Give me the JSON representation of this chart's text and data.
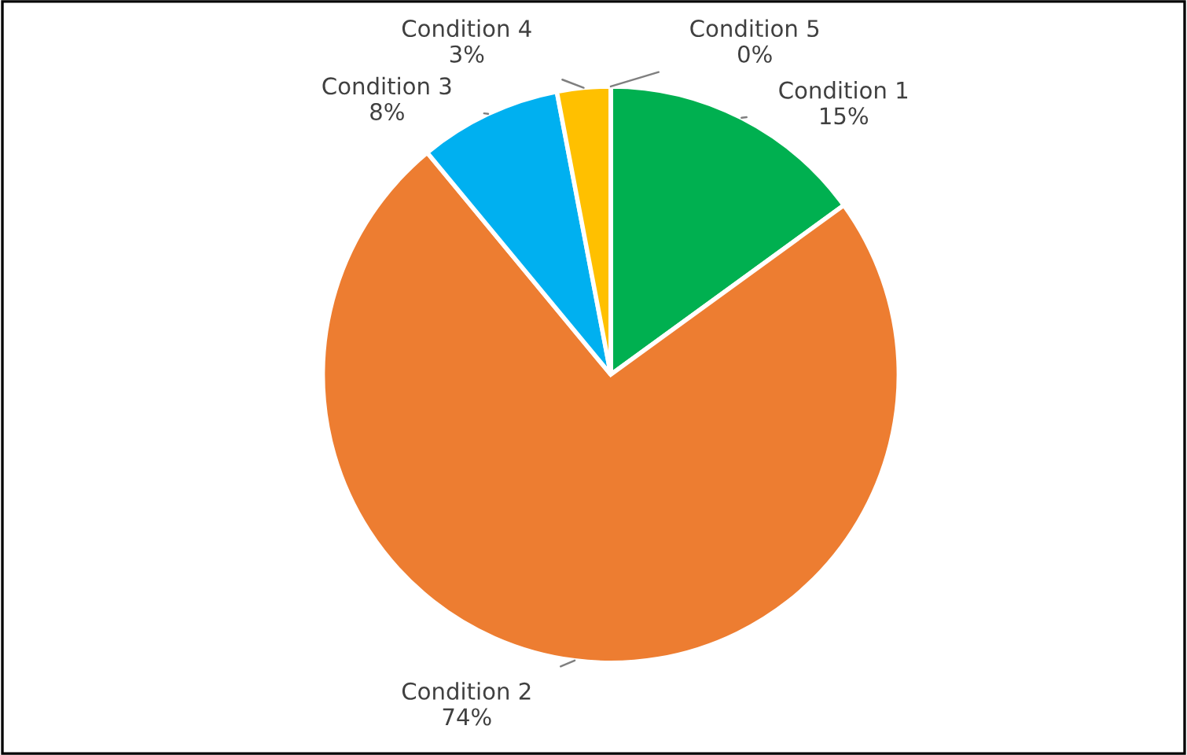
{
  "chart_data": {
    "type": "pie",
    "categories": [
      "Condition 1",
      "Condition 2",
      "Condition 3",
      "Condition 4",
      "Condition 5"
    ],
    "values": [
      15,
      74,
      8,
      3,
      0
    ],
    "value_labels": [
      "15%",
      "74%",
      "8%",
      "3%",
      "0%"
    ],
    "colors": [
      "#00b050",
      "#ed7d31",
      "#00b0f0",
      "#ffc000",
      "#ff0000"
    ],
    "legend": false
  }
}
